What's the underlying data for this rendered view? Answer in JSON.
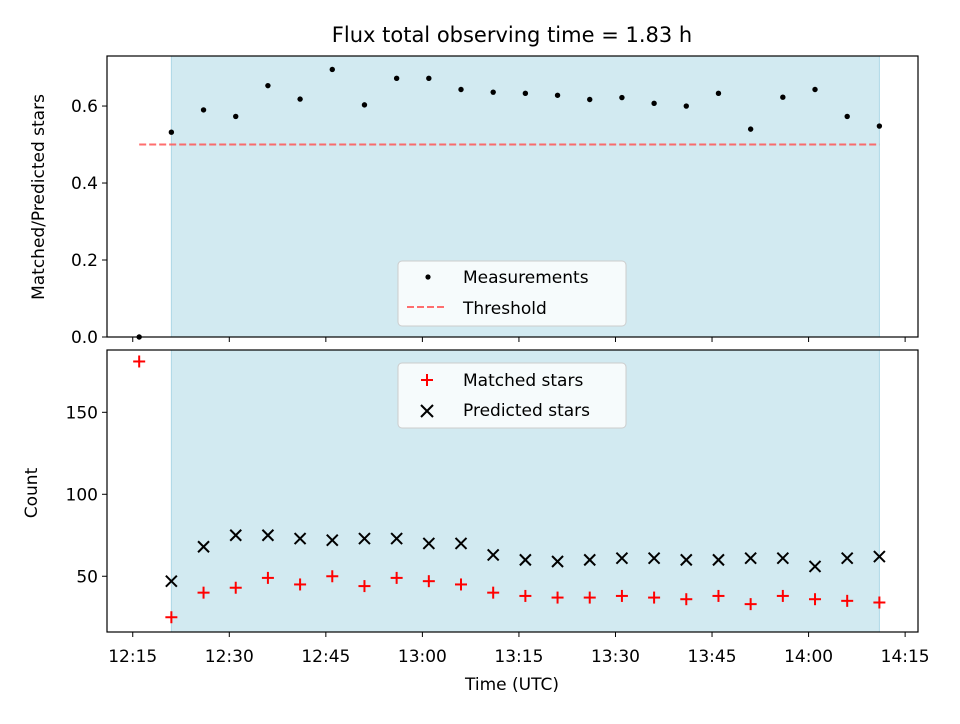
{
  "figure": {
    "title": "Flux total observing time = 1.83 h"
  },
  "colors": {
    "shade": "#add8e6",
    "threshold": "#ff5555",
    "measurement": "#000000",
    "matched": "#ff0000",
    "predicted": "#000000"
  },
  "chart_data": [
    {
      "type": "scatter",
      "panel": "top",
      "title": "Flux total observing time = 1.83 h",
      "xlabel": "",
      "ylabel": "Matched/Predicted stars",
      "xlim": [
        "12:11",
        "14:17"
      ],
      "ylim": [
        0,
        0.73
      ],
      "yticks": [
        0.0,
        0.2,
        0.4,
        0.6
      ],
      "ytick_labels": [
        "0.0",
        "0.2",
        "0.4",
        "0.6"
      ],
      "shaded_interval": [
        "12:21",
        "14:11"
      ],
      "legend_position": "lower-center",
      "series": [
        {
          "name": "Measurements",
          "marker": "dot",
          "x": [
            "12:16",
            "12:21",
            "12:26",
            "12:31",
            "12:36",
            "12:41",
            "12:46",
            "12:51",
            "12:56",
            "13:01",
            "13:06",
            "13:11",
            "13:16",
            "13:21",
            "13:26",
            "13:31",
            "13:36",
            "13:41",
            "13:46",
            "13:51",
            "13:56",
            "14:01",
            "14:06",
            "14:11"
          ],
          "y": [
            0.0,
            0.532,
            0.59,
            0.573,
            0.653,
            0.618,
            0.695,
            0.603,
            0.672,
            0.672,
            0.643,
            0.636,
            0.633,
            0.628,
            0.617,
            0.622,
            0.607,
            0.6,
            0.633,
            0.54,
            0.623,
            0.643,
            0.573,
            0.548
          ]
        },
        {
          "name": "Threshold",
          "line_style": "dashed",
          "x": [
            "12:16",
            "14:11"
          ],
          "y": [
            0.5,
            0.5
          ]
        }
      ]
    },
    {
      "type": "scatter",
      "panel": "bottom",
      "xlabel": "Time (UTC)",
      "ylabel": "Count",
      "xlim": [
        "12:11",
        "14:17"
      ],
      "ylim": [
        16,
        188
      ],
      "yticks": [
        50,
        100,
        150
      ],
      "ytick_labels": [
        "50",
        "100",
        "150"
      ],
      "xticks": [
        "12:15",
        "12:30",
        "12:45",
        "13:00",
        "13:15",
        "13:30",
        "13:45",
        "14:00",
        "14:15"
      ],
      "xtick_labels": [
        "12:15",
        "12:30",
        "12:45",
        "13:00",
        "13:15",
        "13:30",
        "13:45",
        "14:00",
        "14:15"
      ],
      "shaded_interval": [
        "12:21",
        "14:11"
      ],
      "legend_position": "upper-center",
      "series": [
        {
          "name": "Matched stars",
          "marker": "plus",
          "x": [
            "12:16",
            "12:21",
            "12:26",
            "12:31",
            "12:36",
            "12:41",
            "12:46",
            "12:51",
            "12:56",
            "13:01",
            "13:06",
            "13:11",
            "13:16",
            "13:21",
            "13:26",
            "13:31",
            "13:36",
            "13:41",
            "13:46",
            "13:51",
            "13:56",
            "14:01",
            "14:06",
            "14:11"
          ],
          "y": [
            181,
            25,
            40,
            43,
            49,
            45,
            50,
            44,
            49,
            47,
            45,
            40,
            38,
            37,
            37,
            38,
            37,
            36,
            38,
            33,
            38,
            36,
            35,
            34
          ]
        },
        {
          "name": "Predicted stars",
          "marker": "x",
          "x": [
            "12:21",
            "12:26",
            "12:31",
            "12:36",
            "12:41",
            "12:46",
            "12:51",
            "12:56",
            "13:01",
            "13:06",
            "13:11",
            "13:16",
            "13:21",
            "13:26",
            "13:31",
            "13:36",
            "13:41",
            "13:46",
            "13:51",
            "13:56",
            "14:01",
            "14:06",
            "14:11"
          ],
          "y": [
            47,
            68,
            75,
            75,
            73,
            72,
            73,
            73,
            70,
            70,
            63,
            60,
            59,
            60,
            61,
            61,
            60,
            60,
            61,
            61,
            56,
            61,
            62
          ]
        }
      ]
    }
  ]
}
